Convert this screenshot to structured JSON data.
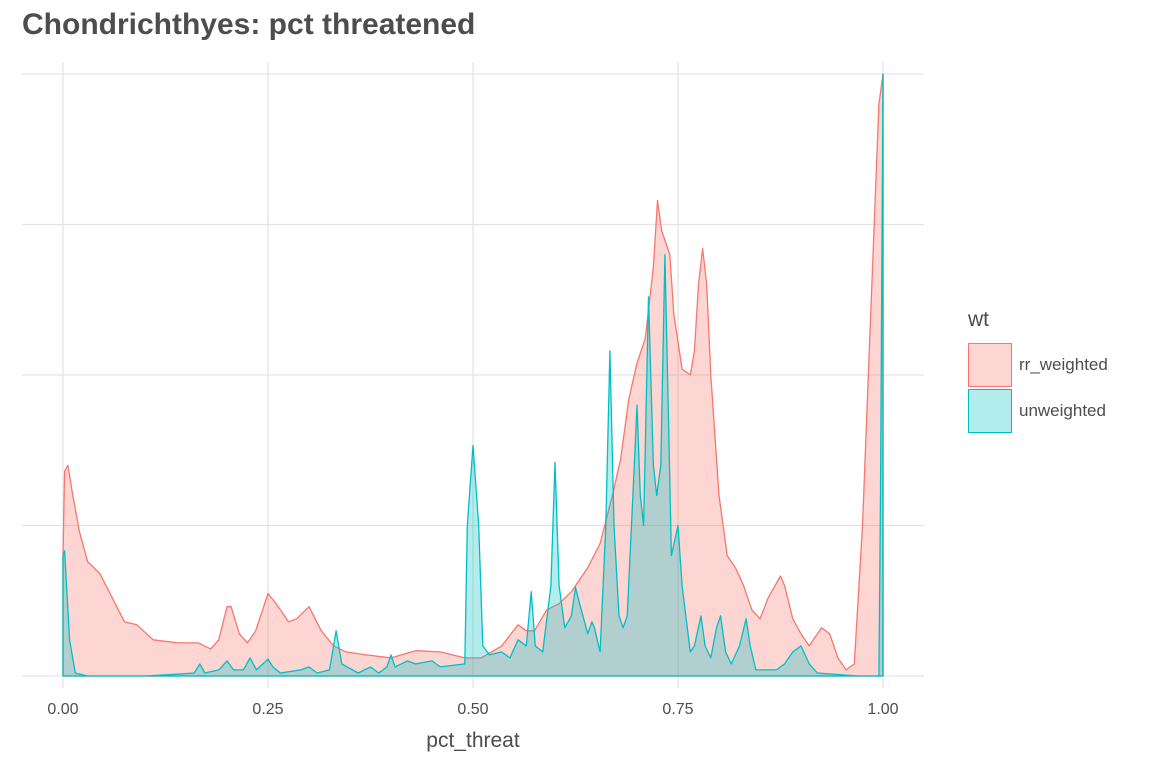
{
  "chart_data": {
    "type": "area",
    "title": "Chondrichthyes: pct threatened",
    "xlabel": "pct_threat",
    "ylabel": "",
    "xlim": [
      -0.05,
      1.05
    ],
    "ylim": [
      -0.02,
      1.02
    ],
    "x_ticks": [
      0.0,
      0.25,
      0.5,
      0.75,
      1.0
    ],
    "x_tick_labels": [
      "0.00",
      "0.25",
      "0.50",
      "0.75",
      "1.00"
    ],
    "y_tick_labels": [],
    "grid": true,
    "legend_title": "wt",
    "legend_position": "right",
    "series": [
      {
        "name": "rr_weighted",
        "stroke": "#f8766d",
        "fill": "#f8766d",
        "points": [
          [
            0.0,
            0.2
          ],
          [
            0.002,
            0.34
          ],
          [
            0.006,
            0.35
          ],
          [
            0.012,
            0.3
          ],
          [
            0.02,
            0.24
          ],
          [
            0.03,
            0.19
          ],
          [
            0.045,
            0.17
          ],
          [
            0.06,
            0.13
          ],
          [
            0.075,
            0.09
          ],
          [
            0.09,
            0.085
          ],
          [
            0.11,
            0.06
          ],
          [
            0.14,
            0.055
          ],
          [
            0.165,
            0.055
          ],
          [
            0.18,
            0.045
          ],
          [
            0.19,
            0.06
          ],
          [
            0.2,
            0.115
          ],
          [
            0.205,
            0.115
          ],
          [
            0.215,
            0.07
          ],
          [
            0.225,
            0.055
          ],
          [
            0.235,
            0.075
          ],
          [
            0.25,
            0.137
          ],
          [
            0.26,
            0.12
          ],
          [
            0.275,
            0.09
          ],
          [
            0.285,
            0.095
          ],
          [
            0.3,
            0.115
          ],
          [
            0.315,
            0.075
          ],
          [
            0.33,
            0.05
          ],
          [
            0.345,
            0.04
          ],
          [
            0.37,
            0.035
          ],
          [
            0.4,
            0.03
          ],
          [
            0.43,
            0.042
          ],
          [
            0.46,
            0.04
          ],
          [
            0.49,
            0.03
          ],
          [
            0.51,
            0.03
          ],
          [
            0.535,
            0.05
          ],
          [
            0.555,
            0.085
          ],
          [
            0.565,
            0.075
          ],
          [
            0.575,
            0.075
          ],
          [
            0.59,
            0.11
          ],
          [
            0.605,
            0.12
          ],
          [
            0.62,
            0.14
          ],
          [
            0.64,
            0.18
          ],
          [
            0.655,
            0.22
          ],
          [
            0.67,
            0.3
          ],
          [
            0.68,
            0.36
          ],
          [
            0.69,
            0.46
          ],
          [
            0.7,
            0.52
          ],
          [
            0.71,
            0.56
          ],
          [
            0.72,
            0.68
          ],
          [
            0.725,
            0.79
          ],
          [
            0.73,
            0.74
          ],
          [
            0.74,
            0.7
          ],
          [
            0.745,
            0.6
          ],
          [
            0.755,
            0.51
          ],
          [
            0.765,
            0.5
          ],
          [
            0.77,
            0.54
          ],
          [
            0.775,
            0.65
          ],
          [
            0.78,
            0.71
          ],
          [
            0.785,
            0.65
          ],
          [
            0.79,
            0.5
          ],
          [
            0.795,
            0.4
          ],
          [
            0.8,
            0.3
          ],
          [
            0.81,
            0.2
          ],
          [
            0.82,
            0.18
          ],
          [
            0.83,
            0.15
          ],
          [
            0.84,
            0.11
          ],
          [
            0.85,
            0.095
          ],
          [
            0.86,
            0.13
          ],
          [
            0.875,
            0.166
          ],
          [
            0.88,
            0.15
          ],
          [
            0.89,
            0.095
          ],
          [
            0.9,
            0.07
          ],
          [
            0.91,
            0.05
          ],
          [
            0.925,
            0.08
          ],
          [
            0.935,
            0.07
          ],
          [
            0.945,
            0.03
          ],
          [
            0.955,
            0.01
          ],
          [
            0.965,
            0.02
          ],
          [
            0.975,
            0.25
          ],
          [
            0.985,
            0.6
          ],
          [
            0.995,
            0.95
          ],
          [
            1.0,
            1.0
          ]
        ]
      },
      {
        "name": "unweighted",
        "stroke": "#00bfc4",
        "fill": "#00bfc4",
        "points": [
          [
            0.0,
            0.2
          ],
          [
            0.002,
            0.208
          ],
          [
            0.008,
            0.06
          ],
          [
            0.015,
            0.005
          ],
          [
            0.03,
            0.0
          ],
          [
            0.1,
            0.0
          ],
          [
            0.14,
            0.003
          ],
          [
            0.16,
            0.005
          ],
          [
            0.167,
            0.02
          ],
          [
            0.173,
            0.005
          ],
          [
            0.19,
            0.01
          ],
          [
            0.2,
            0.025
          ],
          [
            0.208,
            0.01
          ],
          [
            0.22,
            0.01
          ],
          [
            0.228,
            0.03
          ],
          [
            0.236,
            0.01
          ],
          [
            0.25,
            0.028
          ],
          [
            0.256,
            0.015
          ],
          [
            0.265,
            0.005
          ],
          [
            0.29,
            0.01
          ],
          [
            0.3,
            0.015
          ],
          [
            0.31,
            0.005
          ],
          [
            0.325,
            0.01
          ],
          [
            0.333,
            0.075
          ],
          [
            0.34,
            0.02
          ],
          [
            0.36,
            0.005
          ],
          [
            0.375,
            0.015
          ],
          [
            0.385,
            0.005
          ],
          [
            0.395,
            0.015
          ],
          [
            0.4,
            0.035
          ],
          [
            0.405,
            0.015
          ],
          [
            0.42,
            0.025
          ],
          [
            0.43,
            0.02
          ],
          [
            0.45,
            0.025
          ],
          [
            0.46,
            0.015
          ],
          [
            0.49,
            0.02
          ],
          [
            0.493,
            0.25
          ],
          [
            0.5,
            0.383
          ],
          [
            0.507,
            0.25
          ],
          [
            0.512,
            0.05
          ],
          [
            0.52,
            0.035
          ],
          [
            0.535,
            0.04
          ],
          [
            0.545,
            0.03
          ],
          [
            0.555,
            0.06
          ],
          [
            0.565,
            0.05
          ],
          [
            0.571,
            0.14
          ],
          [
            0.576,
            0.05
          ],
          [
            0.585,
            0.04
          ],
          [
            0.595,
            0.15
          ],
          [
            0.6,
            0.355
          ],
          [
            0.605,
            0.15
          ],
          [
            0.612,
            0.08
          ],
          [
            0.62,
            0.1
          ],
          [
            0.625,
            0.147
          ],
          [
            0.63,
            0.12
          ],
          [
            0.64,
            0.07
          ],
          [
            0.645,
            0.09
          ],
          [
            0.648,
            0.08
          ],
          [
            0.655,
            0.04
          ],
          [
            0.662,
            0.25
          ],
          [
            0.667,
            0.54
          ],
          [
            0.672,
            0.25
          ],
          [
            0.678,
            0.1
          ],
          [
            0.683,
            0.08
          ],
          [
            0.688,
            0.1
          ],
          [
            0.695,
            0.3
          ],
          [
            0.7,
            0.45
          ],
          [
            0.704,
            0.3
          ],
          [
            0.708,
            0.25
          ],
          [
            0.714,
            0.63
          ],
          [
            0.72,
            0.35
          ],
          [
            0.724,
            0.3
          ],
          [
            0.729,
            0.35
          ],
          [
            0.734,
            0.7
          ],
          [
            0.738,
            0.45
          ],
          [
            0.742,
            0.2
          ],
          [
            0.75,
            0.25
          ],
          [
            0.755,
            0.15
          ],
          [
            0.765,
            0.04
          ],
          [
            0.77,
            0.05
          ],
          [
            0.778,
            0.1
          ],
          [
            0.783,
            0.05
          ],
          [
            0.79,
            0.03
          ],
          [
            0.797,
            0.08
          ],
          [
            0.802,
            0.1
          ],
          [
            0.808,
            0.04
          ],
          [
            0.815,
            0.02
          ],
          [
            0.825,
            0.05
          ],
          [
            0.833,
            0.095
          ],
          [
            0.838,
            0.05
          ],
          [
            0.845,
            0.01
          ],
          [
            0.855,
            0.01
          ],
          [
            0.87,
            0.01
          ],
          [
            0.88,
            0.02
          ],
          [
            0.89,
            0.04
          ],
          [
            0.9,
            0.05
          ],
          [
            0.91,
            0.02
          ],
          [
            0.92,
            0.005
          ],
          [
            0.97,
            0.0
          ],
          [
            0.995,
            0.0
          ],
          [
            0.997,
            0.3
          ],
          [
            1.0,
            1.0
          ]
        ]
      }
    ]
  }
}
